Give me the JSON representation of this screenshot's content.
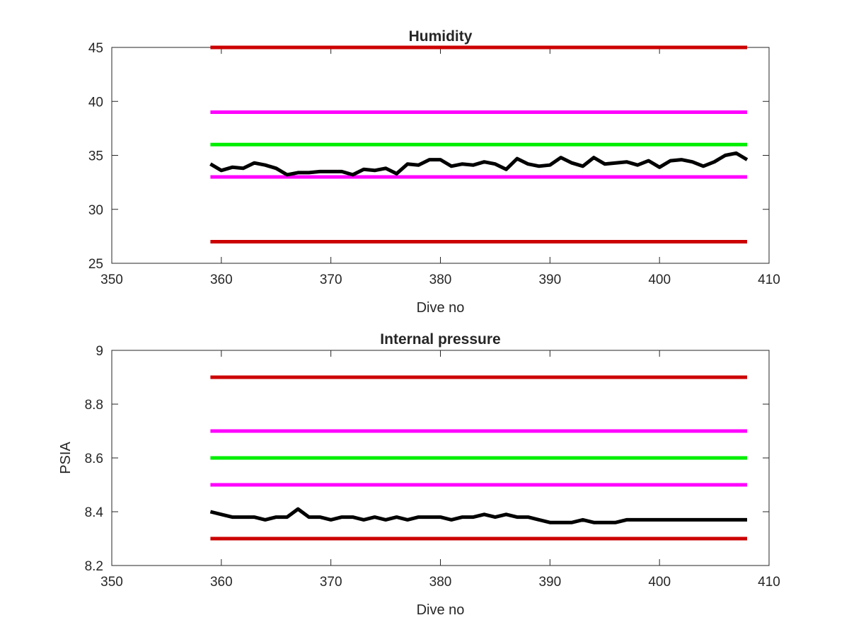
{
  "chart_data": [
    {
      "type": "line",
      "title": "Humidity",
      "xlabel": "Dive no",
      "ylabel": "",
      "xlim": [
        350,
        410
      ],
      "ylim": [
        25,
        45
      ],
      "xticks": [
        350,
        360,
        370,
        380,
        390,
        400,
        410
      ],
      "yticks": [
        25,
        30,
        35,
        40,
        45
      ],
      "xtick_labels": [
        "350",
        "360",
        "370",
        "380",
        "390",
        "400",
        "410"
      ],
      "ytick_labels": [
        "25",
        "30",
        "35",
        "40",
        "45"
      ],
      "grid": false,
      "series": [
        {
          "color": "#cc0000",
          "x": [
            359,
            408
          ],
          "y": [
            45,
            45
          ]
        },
        {
          "color": "#ff00ff",
          "x": [
            359,
            408
          ],
          "y": [
            39,
            39
          ]
        },
        {
          "color": "#00ee00",
          "x": [
            359,
            408
          ],
          "y": [
            36,
            36
          ]
        },
        {
          "color": "#ff00ff",
          "x": [
            359,
            408
          ],
          "y": [
            33,
            33
          ]
        },
        {
          "color": "#cc0000",
          "x": [
            359,
            408
          ],
          "y": [
            27,
            27
          ]
        },
        {
          "color": "#000000",
          "x": [
            359,
            360,
            361,
            362,
            363,
            364,
            365,
            366,
            367,
            368,
            369,
            370,
            371,
            372,
            373,
            374,
            375,
            376,
            377,
            378,
            379,
            380,
            381,
            382,
            383,
            384,
            385,
            386,
            387,
            388,
            389,
            390,
            391,
            392,
            393,
            394,
            395,
            396,
            397,
            398,
            399,
            400,
            401,
            402,
            403,
            404,
            405,
            406,
            407,
            408
          ],
          "y": [
            34.2,
            33.6,
            33.9,
            33.8,
            34.3,
            34.1,
            33.8,
            33.2,
            33.4,
            33.4,
            33.5,
            33.5,
            33.5,
            33.2,
            33.7,
            33.6,
            33.8,
            33.3,
            34.2,
            34.1,
            34.6,
            34.6,
            34.0,
            34.2,
            34.1,
            34.4,
            34.2,
            33.7,
            34.7,
            34.2,
            34.0,
            34.1,
            34.8,
            34.3,
            34.0,
            34.8,
            34.2,
            34.3,
            34.4,
            34.1,
            34.5,
            33.9,
            34.5,
            34.6,
            34.4,
            34.0,
            34.4,
            35.0,
            35.2,
            34.6
          ]
        }
      ]
    },
    {
      "type": "line",
      "title": "Internal pressure",
      "xlabel": "Dive no",
      "ylabel": "PSIA",
      "xlim": [
        350,
        410
      ],
      "ylim": [
        8.2,
        9.0
      ],
      "xticks": [
        350,
        360,
        370,
        380,
        390,
        400,
        410
      ],
      "yticks": [
        8.2,
        8.4,
        8.6,
        8.8,
        9.0
      ],
      "xtick_labels": [
        "350",
        "360",
        "370",
        "380",
        "390",
        "400",
        "410"
      ],
      "ytick_labels": [
        "8.2",
        "8.4",
        "8.6",
        "8.8",
        "9"
      ],
      "grid": false,
      "series": [
        {
          "color": "#cc0000",
          "x": [
            359,
            408
          ],
          "y": [
            8.9,
            8.9
          ]
        },
        {
          "color": "#ff00ff",
          "x": [
            359,
            408
          ],
          "y": [
            8.7,
            8.7
          ]
        },
        {
          "color": "#00ee00",
          "x": [
            359,
            408
          ],
          "y": [
            8.6,
            8.6
          ]
        },
        {
          "color": "#ff00ff",
          "x": [
            359,
            408
          ],
          "y": [
            8.5,
            8.5
          ]
        },
        {
          "color": "#cc0000",
          "x": [
            359,
            408
          ],
          "y": [
            8.3,
            8.3
          ]
        },
        {
          "color": "#000000",
          "x": [
            359,
            360,
            361,
            362,
            363,
            364,
            365,
            366,
            367,
            368,
            369,
            370,
            371,
            372,
            373,
            374,
            375,
            376,
            377,
            378,
            379,
            380,
            381,
            382,
            383,
            384,
            385,
            386,
            387,
            388,
            389,
            390,
            391,
            392,
            393,
            394,
            395,
            396,
            397,
            398,
            399,
            400,
            401,
            402,
            403,
            404,
            405,
            406,
            407,
            408
          ],
          "y": [
            8.4,
            8.39,
            8.38,
            8.38,
            8.38,
            8.37,
            8.38,
            8.38,
            8.41,
            8.38,
            8.38,
            8.37,
            8.38,
            8.38,
            8.37,
            8.38,
            8.37,
            8.38,
            8.37,
            8.38,
            8.38,
            8.38,
            8.37,
            8.38,
            8.38,
            8.39,
            8.38,
            8.39,
            8.38,
            8.38,
            8.37,
            8.36,
            8.36,
            8.36,
            8.37,
            8.36,
            8.36,
            8.36,
            8.37,
            8.37,
            8.37,
            8.37,
            8.37,
            8.37,
            8.37,
            8.37,
            8.37,
            8.37,
            8.37,
            8.37
          ]
        }
      ]
    }
  ]
}
